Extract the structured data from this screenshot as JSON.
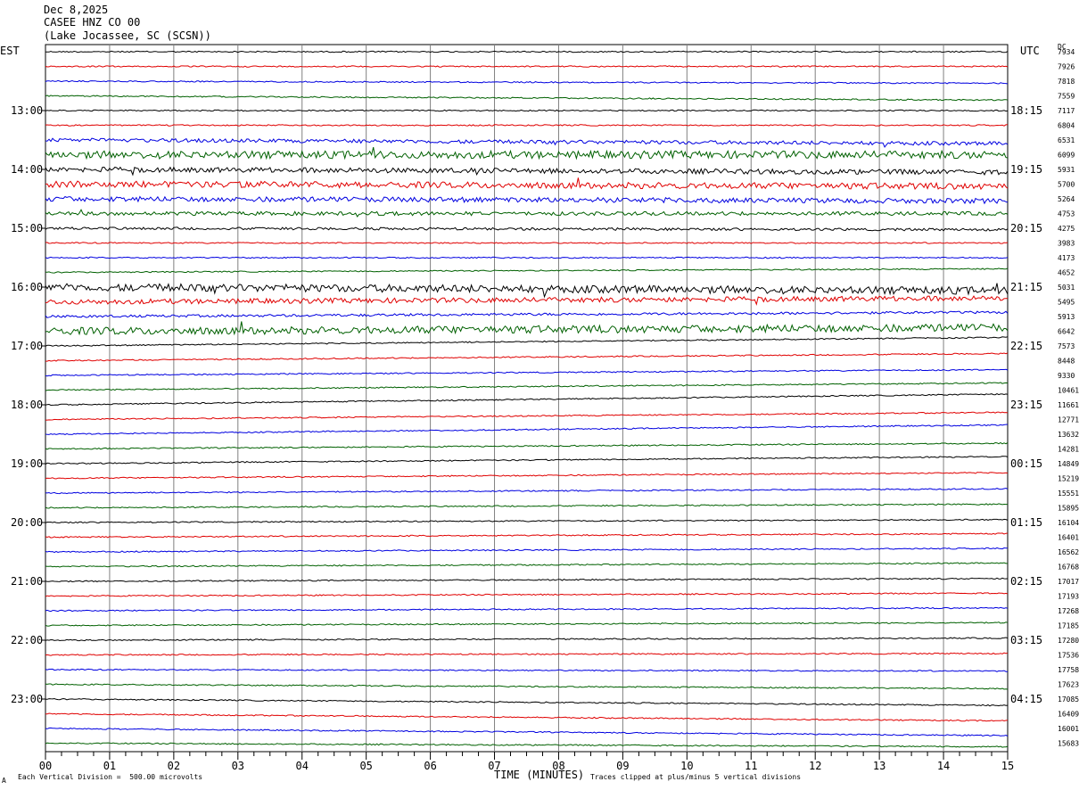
{
  "header": {
    "date": "Dec 8,2025",
    "station": "CASEE HNZ CO 00",
    "location": "(Lake Jocassee, SC (SCSN))"
  },
  "left_axis_label": "EST",
  "right_axis_label": "UTC",
  "dc_label": "DC",
  "footer": {
    "scale_text": "Each Vertical Division =  500.00 microvolts",
    "clip_text": "Traces clipped at plus/minus 5 vertical divisions",
    "mark": "A"
  },
  "colors": {
    "cycle": [
      "#000000",
      "#e00000",
      "#0000e0",
      "#006000"
    ],
    "grid": "#808080"
  },
  "chart_data": {
    "type": "line",
    "title": "",
    "xlabel": "TIME (MINUTES)",
    "ylabel": "",
    "xlim": [
      0,
      15
    ],
    "x_ticks": [
      "00",
      "01",
      "02",
      "03",
      "04",
      "05",
      "06",
      "07",
      "08",
      "09",
      "10",
      "11",
      "12",
      "13",
      "14",
      "15"
    ],
    "grid": true,
    "est_hour_labels": [
      "13:00",
      "14:00",
      "15:00",
      "16:00",
      "17:00",
      "18:00",
      "19:00",
      "20:00",
      "21:00",
      "22:00",
      "23:00"
    ],
    "utc_hour_labels": [
      "18:15",
      "19:15",
      "20:15",
      "21:15",
      "22:15",
      "23:15",
      "00:15",
      "01:15",
      "02:15",
      "03:15",
      "04:15"
    ],
    "dc_values": [
      "7934",
      "7926",
      "7818",
      "7559",
      "7117",
      "6804",
      "6531",
      "6099",
      "5931",
      "5700",
      "5264",
      "4753",
      "4275",
      "3983",
      "4173",
      "4652",
      "5031",
      "5495",
      "5913",
      "6642",
      "7573",
      "8448",
      "9330",
      "10461",
      "11661",
      "12771",
      "13632",
      "14281",
      "14849",
      "15219",
      "15551",
      "15895",
      "16104",
      "16401",
      "16562",
      "16768",
      "17017",
      "17193",
      "17268",
      "17185",
      "17280",
      "17536",
      "17758",
      "17623",
      "17085",
      "16409",
      "16001",
      "15683"
    ],
    "trace_noise_level": [
      1,
      1,
      1,
      1,
      1,
      1,
      3,
      6,
      4,
      5,
      4,
      3,
      2,
      1,
      1,
      1,
      6,
      4,
      2,
      6,
      1,
      1,
      1,
      1,
      1,
      1,
      1,
      1,
      1,
      1,
      1,
      1,
      1,
      1,
      1,
      1,
      1,
      1,
      1,
      1,
      1,
      1,
      1,
      1,
      1,
      1,
      1,
      1
    ],
    "trace_drift": [
      0,
      0,
      0.3,
      0.6,
      0,
      0,
      0.5,
      0,
      0.4,
      0.3,
      0.3,
      0,
      0.2,
      0,
      0,
      -0.5,
      0.5,
      -0.5,
      -0.6,
      -0.5,
      -1.2,
      -1.0,
      -0.8,
      -1.0,
      -1.5,
      -1.0,
      -1.3,
      -0.8,
      -1.0,
      -0.8,
      -0.6,
      -0.5,
      -0.4,
      -0.5,
      -0.5,
      -0.5,
      -0.4,
      -0.4,
      -0.4,
      -0.4,
      -0.3,
      -0.2,
      0.2,
      0.6,
      0.9,
      1.0,
      1.0,
      0.5
    ]
  }
}
